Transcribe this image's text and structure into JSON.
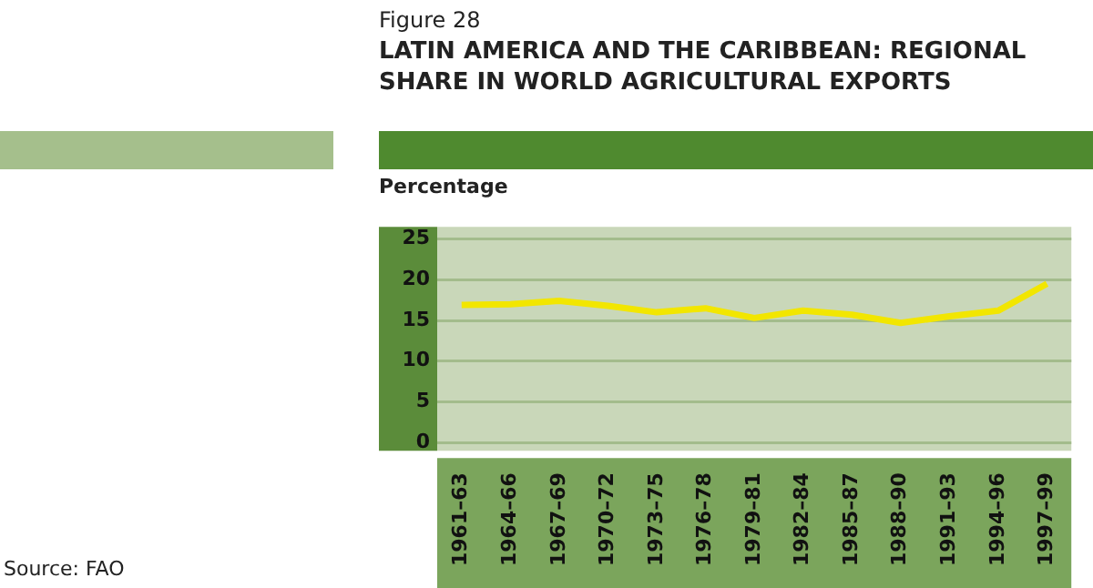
{
  "chart_data": {
    "type": "line",
    "title": "LATIN AMERICA AND THE CARIBBEAN: REGIONAL SHARE IN WORLD AGRICULTURAL EXPORTS",
    "ylabel": "Percentage",
    "annotations": [
      "Figure 28",
      "Source: FAO"
    ],
    "categories": [
      "1961–63",
      "1964–66",
      "1967–69",
      "1970–72",
      "1973–75",
      "1976–78",
      "1979–81",
      "1982–84",
      "1985–87",
      "1988–90",
      "1991–93",
      "1994–96",
      "1997–99"
    ],
    "series": [
      {
        "color": "#f2e600",
        "values": [
          16.9,
          17.0,
          17.4,
          16.8,
          16.0,
          16.5,
          15.3,
          16.2,
          15.7,
          14.7,
          15.5,
          16.2,
          19.5
        ]
      }
    ],
    "ylim": [
      -1,
      26.5
    ],
    "yticks": [
      0,
      5,
      10,
      15,
      20,
      25
    ],
    "grid": "y",
    "marker": "none",
    "line_style": "solid",
    "legend": false
  }
}
